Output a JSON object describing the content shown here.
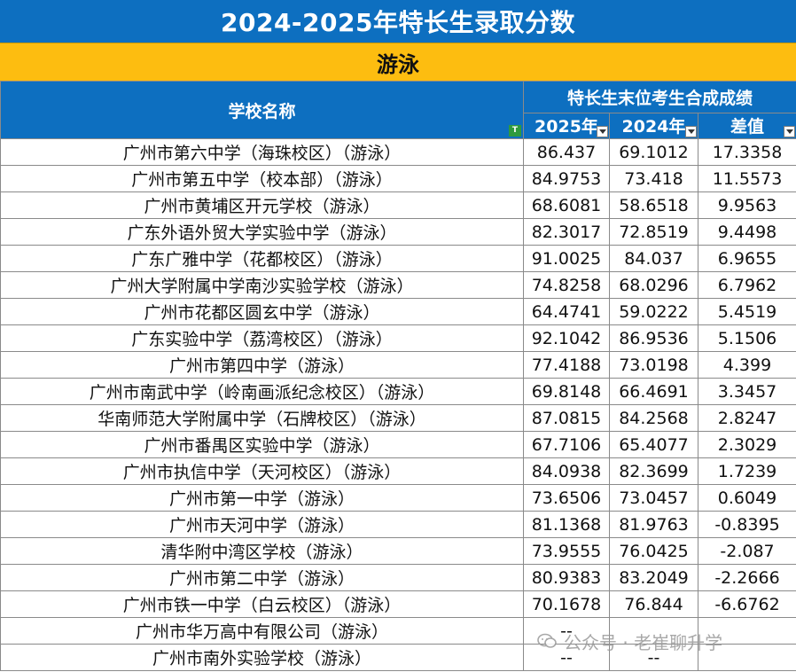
{
  "title": "2024-2025年特长生录取分数",
  "sport": "游泳",
  "headers": {
    "school": "学校名称",
    "group": "特长生末位考生合成成绩",
    "col_2025": "2025年",
    "col_2024": "2024年",
    "col_diff": "差值"
  },
  "rows": [
    {
      "school": "广州市第六中学（海珠校区）（游泳）",
      "y2025": "86.437",
      "y2024": "69.1012",
      "diff": "17.3358"
    },
    {
      "school": "广州市第五中学（校本部）（游泳）",
      "y2025": "84.9753",
      "y2024": "73.418",
      "diff": "11.5573"
    },
    {
      "school": "广州市黄埔区开元学校（游泳）",
      "y2025": "68.6081",
      "y2024": "58.6518",
      "diff": "9.9563"
    },
    {
      "school": "广东外语外贸大学实验中学（游泳）",
      "y2025": "82.3017",
      "y2024": "72.8519",
      "diff": "9.4498"
    },
    {
      "school": "广东广雅中学（花都校区）（游泳）",
      "y2025": "91.0025",
      "y2024": "84.037",
      "diff": "6.9655"
    },
    {
      "school": "广州大学附属中学南沙实验学校（游泳）",
      "y2025": "74.8258",
      "y2024": "68.0296",
      "diff": "6.7962"
    },
    {
      "school": "广州市花都区圆玄中学（游泳）",
      "y2025": "64.4741",
      "y2024": "59.0222",
      "diff": "5.4519"
    },
    {
      "school": "广东实验中学（荔湾校区）（游泳）",
      "y2025": "92.1042",
      "y2024": "86.9536",
      "diff": "5.1506"
    },
    {
      "school": "广州市第四中学（游泳）",
      "y2025": "77.4188",
      "y2024": "73.0198",
      "diff": "4.399"
    },
    {
      "school": "广州市南武中学（岭南画派纪念校区）（游泳）",
      "y2025": "69.8148",
      "y2024": "66.4691",
      "diff": "3.3457"
    },
    {
      "school": "华南师范大学附属中学（石牌校区）（游泳）",
      "y2025": "87.0815",
      "y2024": "84.2568",
      "diff": "2.8247"
    },
    {
      "school": "广州市番禺区实验中学（游泳）",
      "y2025": "67.7106",
      "y2024": "65.4077",
      "diff": "2.3029"
    },
    {
      "school": "广州市执信中学（天河校区）（游泳）",
      "y2025": "84.0938",
      "y2024": "82.3699",
      "diff": "1.7239"
    },
    {
      "school": "广州市第一中学（游泳）",
      "y2025": "73.6506",
      "y2024": "73.0457",
      "diff": "0.6049"
    },
    {
      "school": "广州市天河中学（游泳）",
      "y2025": "81.1368",
      "y2024": "81.9763",
      "diff": "-0.8395"
    },
    {
      "school": "清华附中湾区学校（游泳）",
      "y2025": "73.9555",
      "y2024": "76.0425",
      "diff": "-2.087"
    },
    {
      "school": "广州市第二中学（游泳）",
      "y2025": "80.9383",
      "y2024": "83.2049",
      "diff": "-2.2666"
    },
    {
      "school": "广州市铁一中学（白云校区）（游泳）",
      "y2025": "70.1678",
      "y2024": "76.844",
      "diff": "-6.6762"
    },
    {
      "school": "广州市华万高中有限公司（游泳）",
      "y2025": "--",
      "y2024": "",
      "diff": ""
    },
    {
      "school": "广州市南外实验学校（游泳）",
      "y2025": "--",
      "y2024": "--",
      "diff": ""
    }
  ],
  "watermark": {
    "text": "公众号 · 老崔聊升学",
    "icon": "wechat-official-account-icon"
  },
  "colors": {
    "header_blue": "#0d6fc0",
    "sport_yellow": "#fdbd10",
    "filter_green": "#2e9a3e"
  }
}
